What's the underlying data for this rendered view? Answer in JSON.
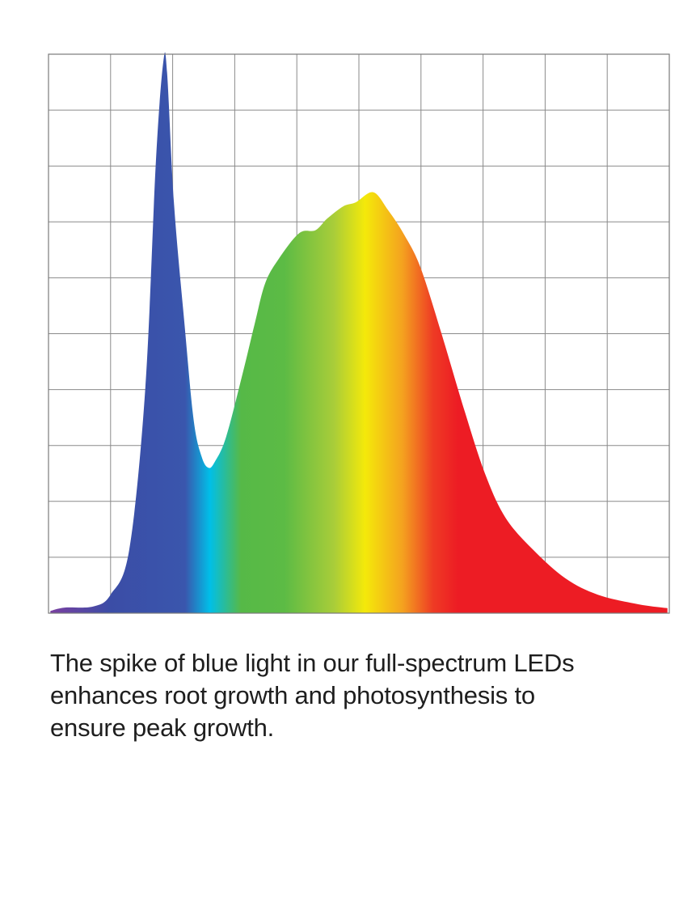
{
  "chart_data": {
    "type": "area",
    "title": "",
    "xlabel": "",
    "ylabel": "",
    "xlim": [
      0,
      10
    ],
    "ylim": [
      0,
      10
    ],
    "grid": true,
    "grid_divisions": {
      "x": 10,
      "y": 10
    },
    "tick_labels": "none",
    "fill": "spectrum gradient (violet → blue → cyan → green → yellow → orange → red)",
    "gradient_colors": [
      "#7b3fa0",
      "#3b4da6",
      "#3a56ad",
      "#00bfe8",
      "#56b947",
      "#5cbb45",
      "#a9cd39",
      "#f4e90a",
      "#f4a21f",
      "#ee3a24",
      "#ed1c24"
    ],
    "grid_color": "#8a8a8a",
    "series": [
      {
        "x": [
          0.03,
          0.26,
          0.72,
          1.0,
          1.3,
          1.56,
          1.73,
          1.85,
          1.91,
          2.02,
          2.19,
          2.34,
          2.47,
          2.58,
          2.68,
          2.86,
          3.13,
          3.32,
          3.49,
          3.71,
          4.04,
          4.3,
          4.49,
          4.75,
          4.95,
          5.23,
          5.47,
          5.73,
          5.99,
          6.32,
          6.71,
          7.03,
          7.36,
          7.81,
          8.33,
          8.85,
          9.5,
          9.97
        ],
        "y": [
          0.04,
          0.1,
          0.12,
          0.33,
          1.13,
          4.03,
          8.08,
          9.87,
          9.67,
          7.35,
          5.18,
          3.44,
          2.79,
          2.6,
          2.71,
          3.15,
          4.3,
          5.17,
          5.9,
          6.34,
          6.8,
          6.85,
          7.06,
          7.28,
          7.35,
          7.53,
          7.21,
          6.77,
          6.19,
          5.04,
          3.59,
          2.5,
          1.71,
          1.13,
          0.62,
          0.33,
          0.16,
          0.09
        ]
      }
    ]
  },
  "caption": {
    "line1": "The spike of blue light in our full-spectrum LEDs",
    "line2": "enhances root growth and photosynthesis to",
    "line3": "ensure peak growth."
  }
}
